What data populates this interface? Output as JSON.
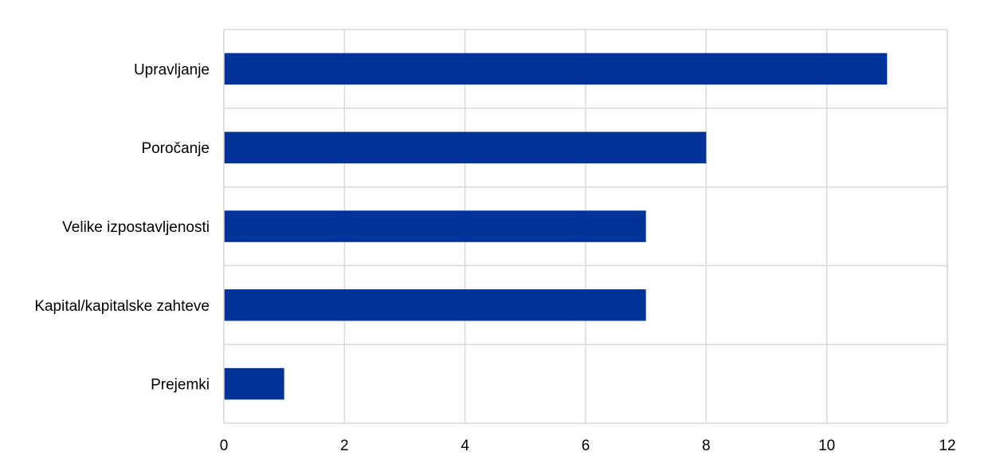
{
  "chart_data": {
    "type": "bar",
    "orientation": "horizontal",
    "categories": [
      "Upravljanje",
      "Poročanje",
      "Velike izpostavljenosti",
      "Kapital/kapitalske zahteve",
      "Prejemki"
    ],
    "values": [
      11,
      8,
      7,
      7,
      1
    ],
    "xlim": [
      0,
      12
    ],
    "xticks": [
      "0",
      "2",
      "4",
      "6",
      "8",
      "10",
      "12"
    ],
    "grid": true,
    "legend": "none",
    "colors": {
      "bar": "#003299",
      "grid": "#d9d9d9",
      "axis": "#d9d9d9"
    }
  }
}
